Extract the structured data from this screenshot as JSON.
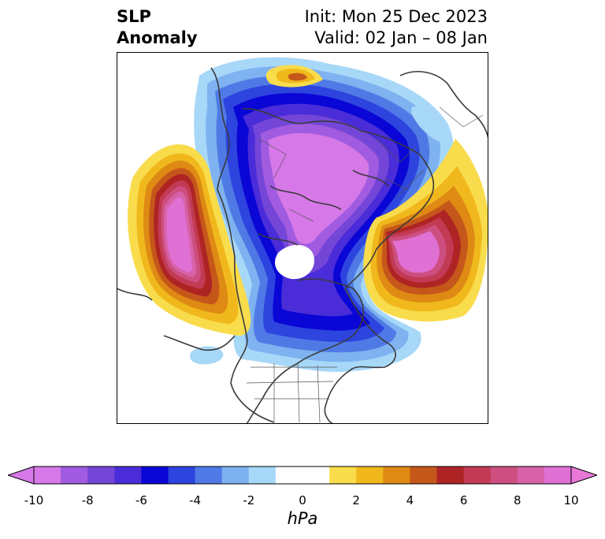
{
  "title": {
    "left_line1": "SLP",
    "left_line2": "Anomaly",
    "right_line1": "Init: Mon 25 Dec 2023",
    "right_line2": "Valid: 02 Jan – 08 Jan"
  },
  "colorbar": {
    "unit": "hPa",
    "tick_labels": [
      "-10",
      "-8",
      "-6",
      "-4",
      "-2",
      "0",
      "2",
      "4",
      "6",
      "8",
      "10"
    ],
    "level_min": -10,
    "level_max": 10,
    "level_step": 1,
    "extend": "both",
    "colors": [
      "#d678e8",
      "#a05be0",
      "#7446d8",
      "#4a2cd8",
      "#0a06d6",
      "#2e44de",
      "#4f7ae6",
      "#7eb2f0",
      "#a8d8f8",
      "#ffffff",
      "#ffffff",
      "#f9dc4b",
      "#f0b81c",
      "#de8a14",
      "#c6571a",
      "#ae2424",
      "#c23a54",
      "#cc4f80",
      "#d862a8",
      "#e070d4"
    ],
    "over_color": "#e878d8",
    "under_color": "#d678e8"
  },
  "map": {
    "projection": "north-polar-stereographic",
    "features": [
      "coastlines",
      "country-borders",
      "us-state-borders"
    ]
  }
}
